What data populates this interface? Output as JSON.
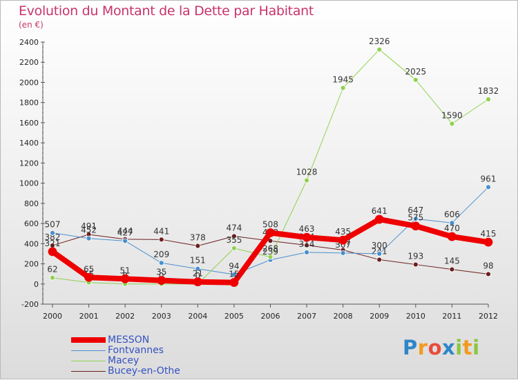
{
  "chart_data": {
    "type": "line",
    "title": "Evolution du Montant de la Dette par Habitant",
    "subtitle": "(en €)",
    "x": [
      2000,
      2001,
      2002,
      2003,
      2004,
      2005,
      2006,
      2007,
      2008,
      2009,
      2010,
      2011,
      2012
    ],
    "ylim": [
      -200,
      2400
    ],
    "yticks": [
      -200,
      0,
      200,
      400,
      600,
      800,
      1000,
      1200,
      1400,
      1600,
      1800,
      2000,
      2200,
      2400
    ],
    "grid": false,
    "legend_position": "bottom-left",
    "series": [
      {
        "name": "Bucey-en-Othe",
        "color": "#6b1e1e",
        "width": 1,
        "values": [
          382,
          491,
          444,
          441,
          378,
          474,
          428,
          384,
          337,
          241,
          193,
          145,
          98
        ]
      },
      {
        "name": "Fontvannes",
        "color": "#4a8fcf",
        "width": 1,
        "values": [
          507,
          452,
          427,
          209,
          151,
          94,
          239,
          314,
          307,
          300,
          647,
          606,
          961
        ]
      },
      {
        "name": "Macey",
        "color": "#8fd14f",
        "width": 1,
        "values": [
          62,
          15,
          0,
          0,
          0,
          355,
          268,
          1028,
          1945,
          2326,
          2025,
          1590,
          1832
        ]
      },
      {
        "name": "MESSON",
        "color": "#ee0000",
        "width": 8,
        "values": [
          321,
          65,
          51,
          35,
          21,
          15,
          508,
          463,
          435,
          641,
          575,
          470,
          415
        ]
      }
    ],
    "legend_order": [
      "MESSON",
      "Fontvannes",
      "Macey",
      "Bucey-en-Othe"
    ]
  },
  "brand": {
    "letters": [
      "P",
      "r",
      "o",
      "x",
      "i",
      "t",
      "i"
    ]
  }
}
